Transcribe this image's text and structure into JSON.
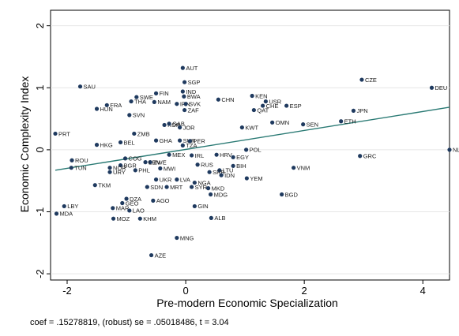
{
  "chart_data": {
    "type": "scatter",
    "xlabel": "Pre-modern Economic Specialization",
    "ylabel": "Economic Complexity Index",
    "xlim": [
      -2.28,
      4.45
    ],
    "ylim": [
      -2.1,
      2.25
    ],
    "xticks": [
      -2,
      0,
      2,
      4
    ],
    "yticks": [
      2,
      1,
      0,
      -1,
      -2
    ],
    "grid": true,
    "marker_color": "#1f3a5f",
    "fit_line": {
      "color": "#2a7a74",
      "intercept": 0.006,
      "slope": 0.1528
    },
    "note": "coef = .15278819, (robust) se = .05018486, t = 3.04",
    "points": [
      {
        "label": "AUT",
        "x": -0.05,
        "y": 1.32
      },
      {
        "label": "SGP",
        "x": -0.02,
        "y": 1.09
      },
      {
        "label": "CZE",
        "x": 2.97,
        "y": 1.13
      },
      {
        "label": "DEU",
        "x": 4.15,
        "y": 1.0
      },
      {
        "label": "SAU",
        "x": -1.78,
        "y": 1.02
      },
      {
        "label": "IND",
        "x": -0.05,
        "y": 0.94
      },
      {
        "label": "FIN",
        "x": -0.5,
        "y": 0.91
      },
      {
        "label": "SWE",
        "x": -0.83,
        "y": 0.85
      },
      {
        "label": "BWA",
        "x": -0.03,
        "y": 0.86
      },
      {
        "label": "KEN",
        "x": 1.12,
        "y": 0.87
      },
      {
        "label": "CHN",
        "x": 0.55,
        "y": 0.81
      },
      {
        "label": "THA",
        "x": -0.92,
        "y": 0.78
      },
      {
        "label": "NAM",
        "x": -0.53,
        "y": 0.77
      },
      {
        "label": "IRN",
        "x": -0.15,
        "y": 0.74
      },
      {
        "label": "SVK",
        "x": 0.0,
        "y": 0.74
      },
      {
        "label": "USR",
        "x": 1.35,
        "y": 0.78
      },
      {
        "label": "FRA",
        "x": -1.33,
        "y": 0.72
      },
      {
        "label": "HUN",
        "x": -1.5,
        "y": 0.66
      },
      {
        "label": "ZAF",
        "x": -0.02,
        "y": 0.64
      },
      {
        "label": "QAT",
        "x": 1.15,
        "y": 0.64
      },
      {
        "label": "CHE",
        "x": 1.3,
        "y": 0.71
      },
      {
        "label": "ESP",
        "x": 1.7,
        "y": 0.71
      },
      {
        "label": "JPN",
        "x": 2.83,
        "y": 0.63
      },
      {
        "label": "SVN",
        "x": -0.95,
        "y": 0.56
      },
      {
        "label": "ETH",
        "x": 2.62,
        "y": 0.46
      },
      {
        "label": "OMN",
        "x": 1.46,
        "y": 0.44
      },
      {
        "label": "SEN",
        "x": 1.98,
        "y": 0.41
      },
      {
        "label": "KOR",
        "x": -0.36,
        "y": 0.4
      },
      {
        "label": "GAB",
        "x": -0.28,
        "y": 0.42
      },
      {
        "label": "JOR",
        "x": -0.1,
        "y": 0.36
      },
      {
        "label": "KWT",
        "x": 0.95,
        "y": 0.36
      },
      {
        "label": "PRT",
        "x": -2.2,
        "y": 0.26
      },
      {
        "label": "ZMB",
        "x": -0.87,
        "y": 0.26
      },
      {
        "label": "BEL",
        "x": -1.1,
        "y": 0.12
      },
      {
        "label": "HKG",
        "x": -1.5,
        "y": 0.08
      },
      {
        "label": "GHA",
        "x": -0.5,
        "y": 0.15
      },
      {
        "label": "SUR",
        "x": -0.1,
        "y": 0.15
      },
      {
        "label": "PER",
        "x": 0.07,
        "y": 0.14
      },
      {
        "label": "TZA",
        "x": -0.05,
        "y": 0.07
      },
      {
        "label": "POL",
        "x": 1.02,
        "y": 0.0
      },
      {
        "label": "NLD",
        "x": 4.45,
        "y": 0.0
      },
      {
        "label": "MEX",
        "x": -0.28,
        "y": -0.08
      },
      {
        "label": "IRL",
        "x": 0.1,
        "y": -0.09
      },
      {
        "label": "HRV",
        "x": 0.52,
        "y": -0.08
      },
      {
        "label": "EGY",
        "x": 0.8,
        "y": -0.12
      },
      {
        "label": "GRC",
        "x": 2.94,
        "y": -0.1
      },
      {
        "label": "ROU",
        "x": -1.92,
        "y": -0.17
      },
      {
        "label": "COG",
        "x": -1.02,
        "y": -0.14
      },
      {
        "label": "ZWE",
        "x": -0.6,
        "y": -0.2
      },
      {
        "label": "LBN",
        "x": -0.68,
        "y": -0.2
      },
      {
        "label": "BGR",
        "x": -1.1,
        "y": -0.25
      },
      {
        "label": "RUS",
        "x": 0.2,
        "y": -0.24
      },
      {
        "label": "BIH",
        "x": 0.8,
        "y": -0.26
      },
      {
        "label": "TUN",
        "x": -1.93,
        "y": -0.29
      },
      {
        "label": "NOR",
        "x": -1.28,
        "y": -0.29
      },
      {
        "label": "MWI",
        "x": -0.43,
        "y": -0.3
      },
      {
        "label": "VNM",
        "x": 1.82,
        "y": -0.29
      },
      {
        "label": "PHL",
        "x": -0.85,
        "y": -0.33
      },
      {
        "label": "LTU",
        "x": 0.57,
        "y": -0.33
      },
      {
        "label": "URY",
        "x": -1.28,
        "y": -0.36
      },
      {
        "label": "SRB",
        "x": 0.4,
        "y": -0.36
      },
      {
        "label": "IDN",
        "x": 0.6,
        "y": -0.41
      },
      {
        "label": "YEM",
        "x": 1.03,
        "y": -0.46
      },
      {
        "label": "UKR",
        "x": -0.5,
        "y": -0.48
      },
      {
        "label": "LVA",
        "x": -0.15,
        "y": -0.48
      },
      {
        "label": "NGA",
        "x": 0.15,
        "y": -0.53
      },
      {
        "label": "TKM",
        "x": -1.53,
        "y": -0.57
      },
      {
        "label": "SDN",
        "x": -0.65,
        "y": -0.6
      },
      {
        "label": "MRT",
        "x": -0.32,
        "y": -0.6
      },
      {
        "label": "SYR",
        "x": 0.1,
        "y": -0.6
      },
      {
        "label": "MKD",
        "x": 0.38,
        "y": -0.62
      },
      {
        "label": "MDG",
        "x": 0.42,
        "y": -0.72
      },
      {
        "label": "BGD",
        "x": 1.62,
        "y": -0.72
      },
      {
        "label": "DZA",
        "x": -1.0,
        "y": -0.79
      },
      {
        "label": "GEO",
        "x": -1.07,
        "y": -0.86
      },
      {
        "label": "AGO",
        "x": -0.55,
        "y": -0.82
      },
      {
        "label": "LBY",
        "x": -2.05,
        "y": -0.91
      },
      {
        "label": "MAR",
        "x": -1.23,
        "y": -0.94
      },
      {
        "label": "LAO",
        "x": -0.95,
        "y": -0.98
      },
      {
        "label": "GIN",
        "x": 0.15,
        "y": -0.91
      },
      {
        "label": "MDA",
        "x": -2.18,
        "y": -1.03
      },
      {
        "label": "MOZ",
        "x": -1.22,
        "y": -1.11
      },
      {
        "label": "KHM",
        "x": -0.77,
        "y": -1.11
      },
      {
        "label": "ALB",
        "x": 0.43,
        "y": -1.1
      },
      {
        "label": "MNG",
        "x": -0.15,
        "y": -1.42
      },
      {
        "label": "AZE",
        "x": -0.58,
        "y": -1.7
      }
    ]
  }
}
